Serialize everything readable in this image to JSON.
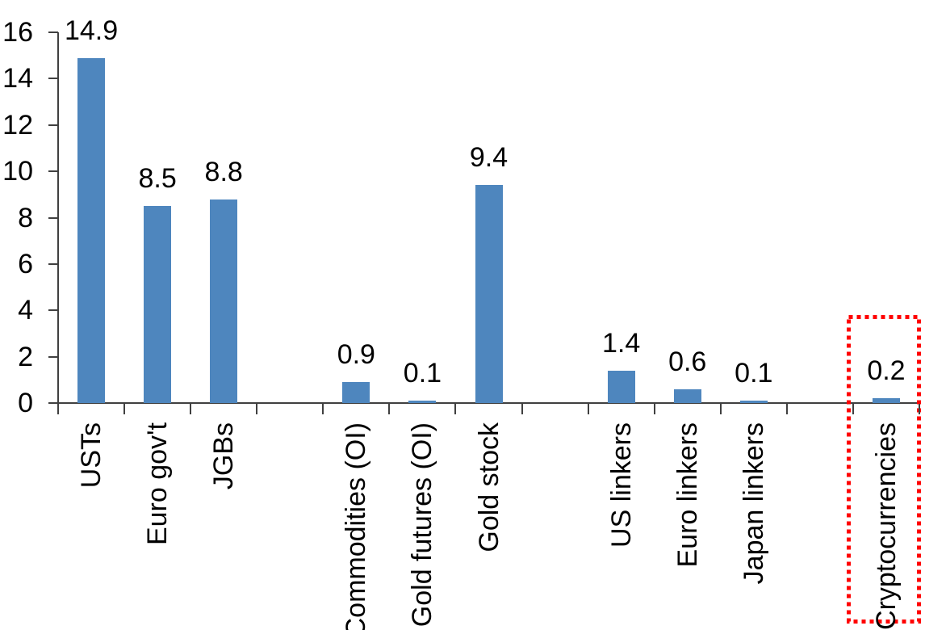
{
  "chart_data": {
    "type": "bar",
    "title": "",
    "categories": [
      "USTs",
      "Euro gov't",
      "JGBs",
      "",
      "Commodities (OI)",
      "Gold futures (OI)",
      "Gold stock",
      "",
      "US linkers",
      "Euro linkers",
      "Japan linkers",
      "",
      "Cryptocurrencies"
    ],
    "values": [
      14.9,
      8.5,
      8.8,
      null,
      0.9,
      0.1,
      9.4,
      null,
      1.4,
      0.6,
      0.1,
      null,
      0.2
    ],
    "data_labels": [
      "14.9",
      "8.5",
      "8.8",
      "",
      "0.9",
      "0.1",
      "9.4",
      "",
      "1.4",
      "0.6",
      "0.1",
      "",
      "0.2"
    ],
    "xlabel": "",
    "ylabel": "",
    "ylim": [
      0,
      16
    ],
    "yticks": [
      0,
      2,
      4,
      6,
      8,
      10,
      12,
      14,
      16
    ],
    "grid": false,
    "legend": false,
    "bar_color": "#4E86BE",
    "axis_color": "#404040",
    "text_color": "#000000",
    "highlight": {
      "category": "Cryptocurrencies",
      "shape": "dotted-rectangle",
      "color": "#FF0000"
    }
  }
}
